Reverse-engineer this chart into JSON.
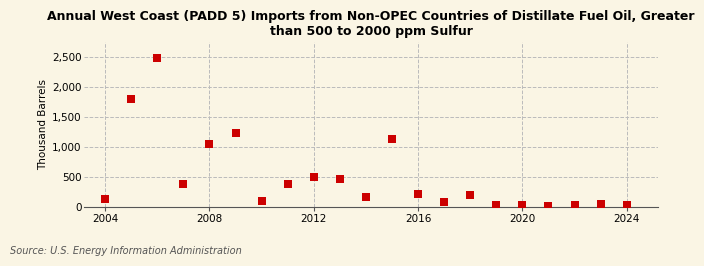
{
  "title": "Annual West Coast (PADD 5) Imports from Non-OPEC Countries of Distillate Fuel Oil, Greater\nthan 500 to 2000 ppm Sulfur",
  "ylabel": "Thousand Barrels",
  "source": "Source: U.S. Energy Information Administration",
  "background_color": "#faf5e4",
  "plot_bg_color": "#faf5e4",
  "x": [
    2004,
    2005,
    2006,
    2007,
    2008,
    2009,
    2010,
    2011,
    2012,
    2013,
    2014,
    2015,
    2016,
    2017,
    2018,
    2019,
    2020,
    2021,
    2022,
    2023,
    2024
  ],
  "y": [
    130,
    1800,
    2470,
    370,
    1050,
    1220,
    90,
    370,
    490,
    460,
    155,
    1120,
    210,
    75,
    195,
    25,
    20,
    15,
    30,
    35,
    25
  ],
  "marker_color": "#cc0000",
  "marker_size": 28,
  "ylim": [
    0,
    2750
  ],
  "yticks": [
    0,
    500,
    1000,
    1500,
    2000,
    2500
  ],
  "ytick_labels": [
    "0",
    "500",
    "1,000",
    "1,500",
    "2,000",
    "2,500"
  ],
  "xlim": [
    2003.2,
    2025.2
  ],
  "xticks": [
    2004,
    2008,
    2012,
    2016,
    2020,
    2024
  ],
  "grid_color": "#bbbbbb",
  "grid_style": "--",
  "title_fontsize": 9.0,
  "axis_fontsize": 7.5,
  "source_fontsize": 7.0
}
